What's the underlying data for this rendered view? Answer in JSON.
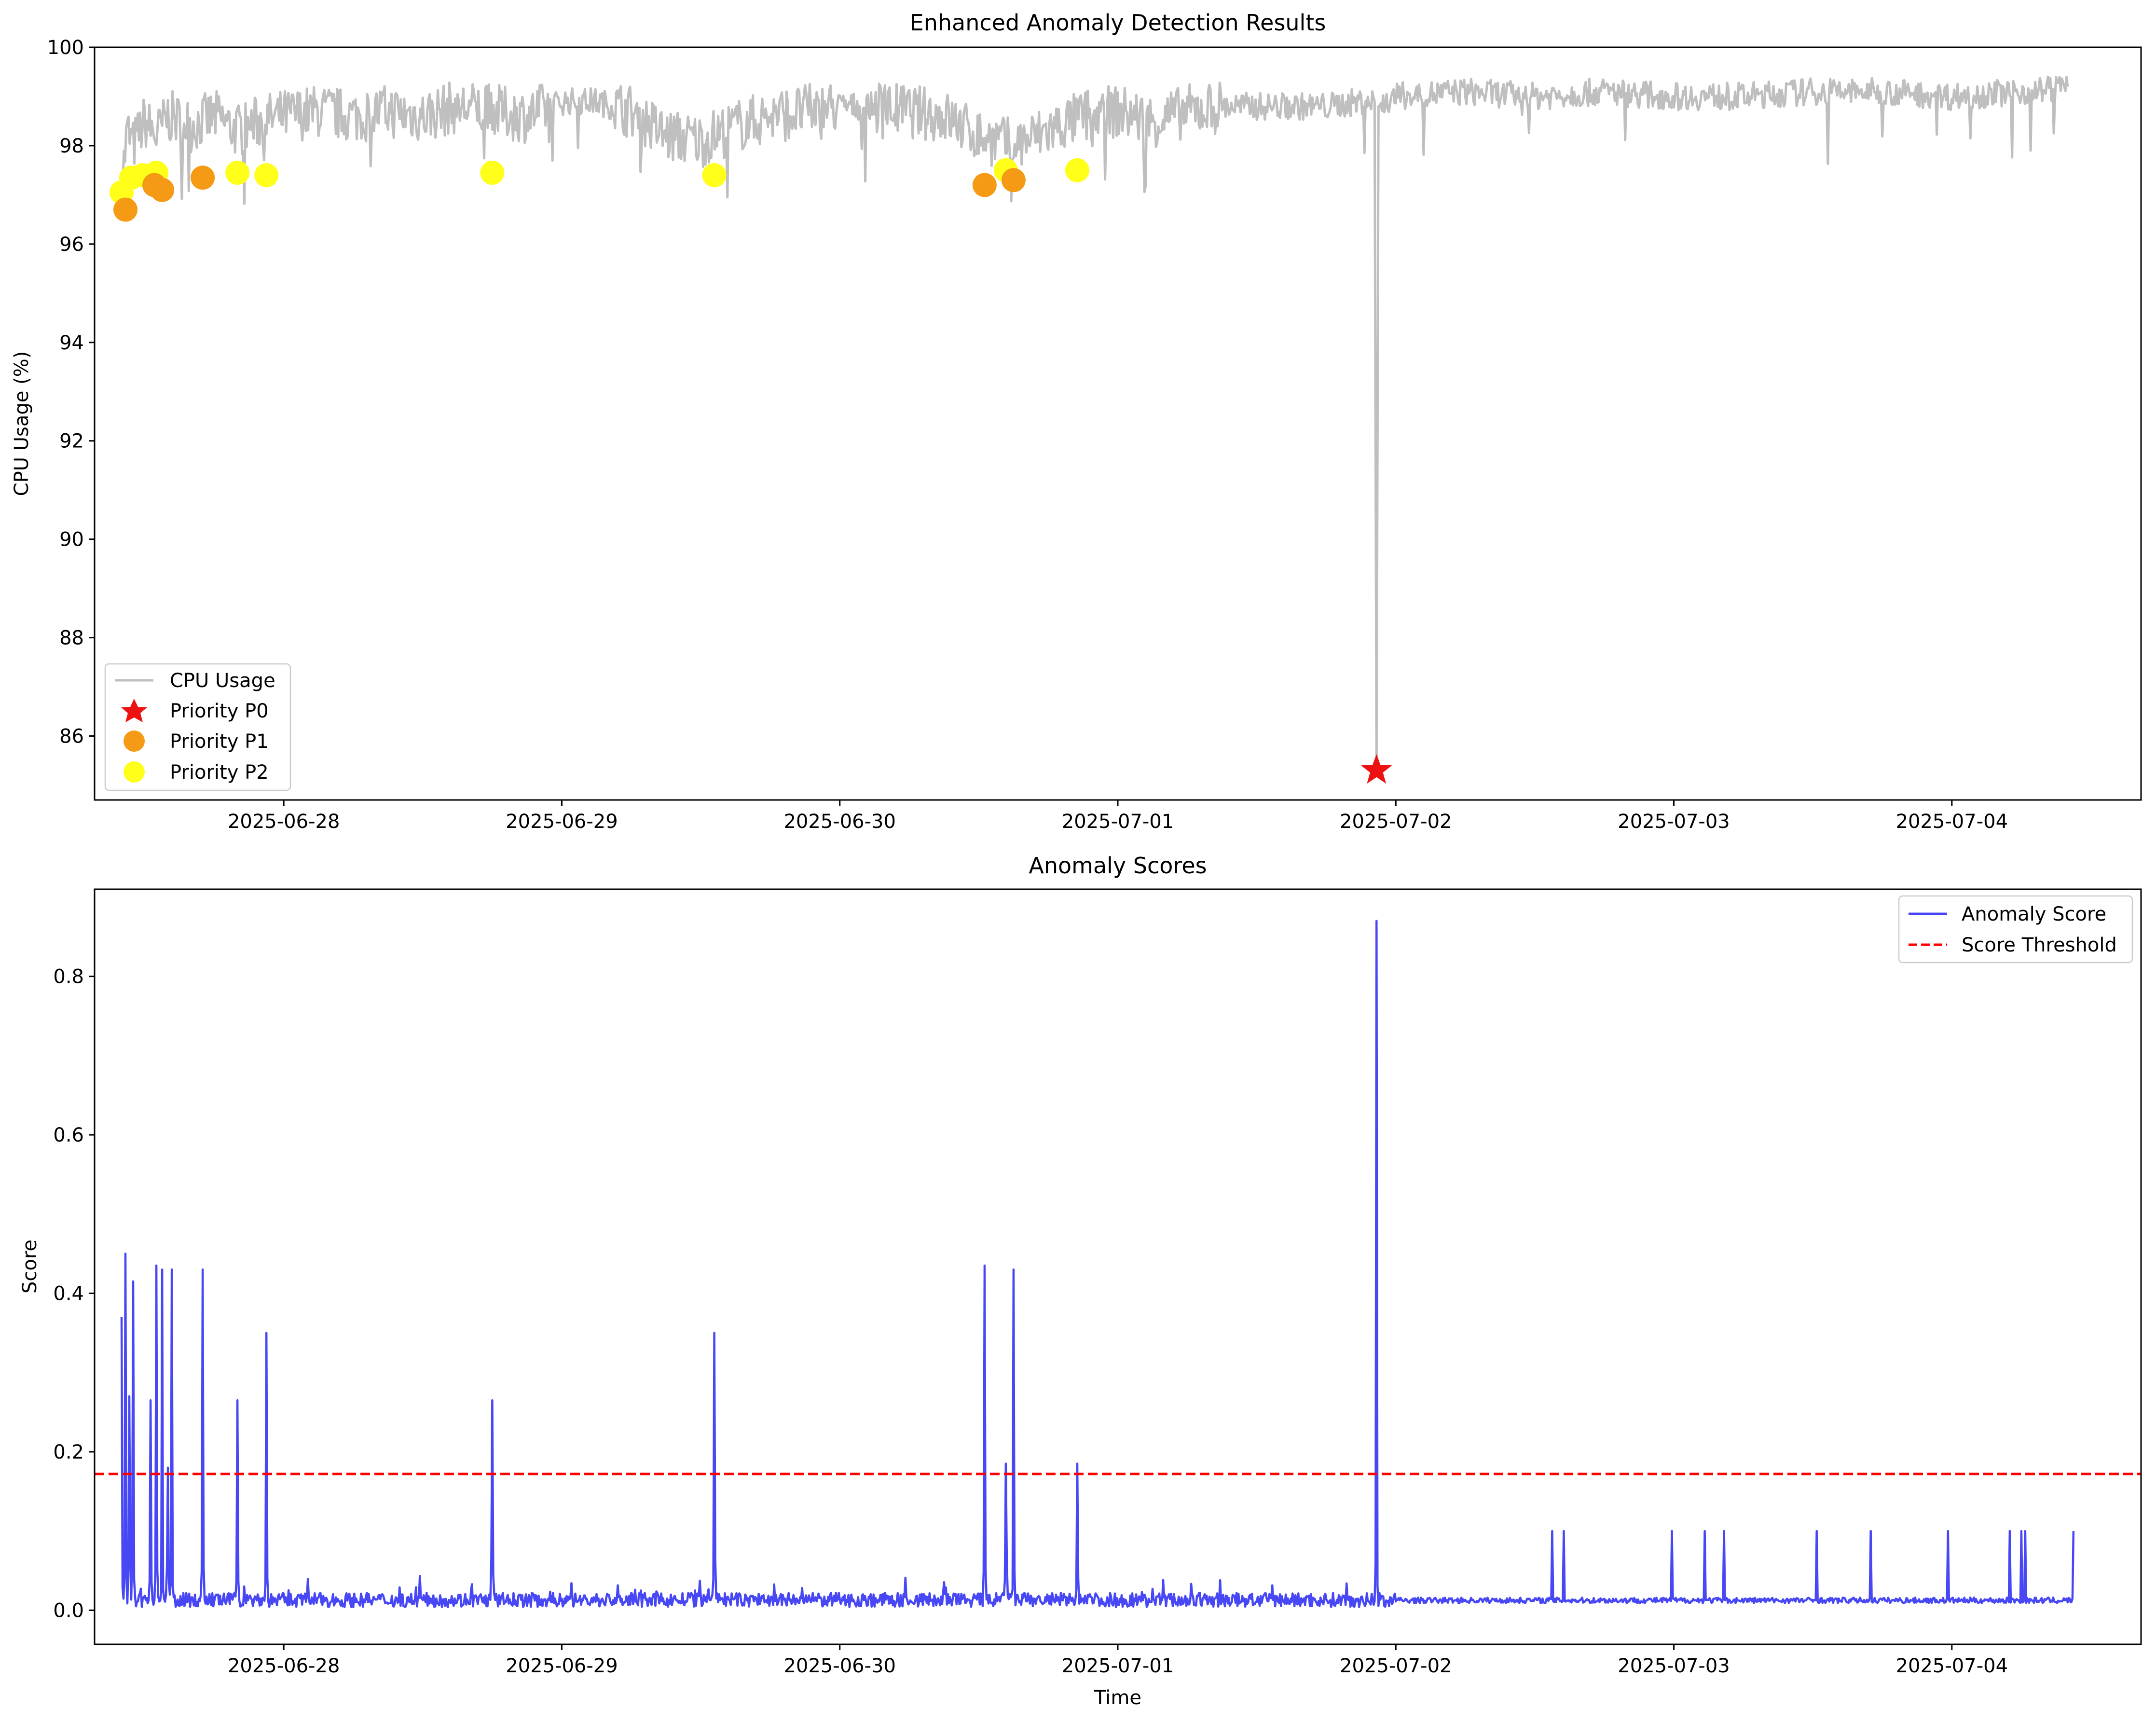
{
  "chart_data": [
    {
      "type": "line",
      "title": "Enhanced Anomaly Detection Results",
      "xlabel": "",
      "ylabel": "CPU Usage (%)",
      "xlim": [
        "2025-06-27T07:40",
        "2025-07-04T16:20"
      ],
      "ylim": [
        84.7,
        100.0
      ],
      "yticks": [
        86,
        88,
        90,
        92,
        94,
        96,
        98,
        100
      ],
      "xticks": [
        "2025-06-28",
        "2025-06-29",
        "2025-06-30",
        "2025-07-01",
        "2025-07-02",
        "2025-07-03",
        "2025-07-04"
      ],
      "grid": false,
      "legend_position": "lower-left",
      "series": [
        {
          "name": "CPU Usage",
          "kind": "line",
          "color": "#bfbfbf",
          "x": [
            "2025-06-27T10:00",
            "2025-06-27T10:30",
            "2025-06-27T11:00",
            "2025-06-27T12:00",
            "2025-06-27T13:00",
            "2025-06-27T14:00",
            "2025-06-27T16:00",
            "2025-06-27T18:00",
            "2025-06-27T20:00",
            "2025-06-27T22:00",
            "2025-06-28T00:00",
            "2025-06-28T03:00",
            "2025-06-28T06:00",
            "2025-06-28T09:00",
            "2025-06-28T12:00",
            "2025-06-28T15:00",
            "2025-06-28T18:00",
            "2025-06-28T21:00",
            "2025-06-29T00:00",
            "2025-06-29T03:00",
            "2025-06-29T06:00",
            "2025-06-29T09:00",
            "2025-06-29T12:00",
            "2025-06-29T15:00",
            "2025-06-29T18:00",
            "2025-06-29T21:00",
            "2025-06-30T00:00",
            "2025-06-30T03:00",
            "2025-06-30T06:00",
            "2025-06-30T09:00",
            "2025-06-30T12:00",
            "2025-06-30T15:00",
            "2025-06-30T18:00",
            "2025-06-30T21:00",
            "2025-07-01T00:00",
            "2025-07-01T03:00",
            "2025-07-01T06:00",
            "2025-07-01T09:00",
            "2025-07-01T12:00",
            "2025-07-01T15:00",
            "2025-07-01T18:00",
            "2025-07-01T21:00",
            "2025-07-01T22:10",
            "2025-07-01T22:20",
            "2025-07-01T22:30",
            "2025-07-02T00:00",
            "2025-07-02T06:00",
            "2025-07-02T12:00",
            "2025-07-02T18:00",
            "2025-07-03T00:00",
            "2025-07-03T06:00",
            "2025-07-03T12:00",
            "2025-07-03T18:00",
            "2025-07-04T00:00",
            "2025-07-04T06:00",
            "2025-07-04T10:00"
          ],
          "y": [
            97.2,
            98.3,
            98.0,
            98.5,
            98.2,
            98.6,
            98.4,
            98.6,
            98.3,
            98.5,
            98.6,
            98.7,
            98.6,
            98.7,
            98.6,
            98.8,
            98.7,
            98.6,
            98.9,
            98.9,
            98.7,
            98.2,
            98.1,
            98.4,
            98.6,
            98.7,
            98.8,
            98.8,
            98.7,
            98.6,
            98.2,
            98.0,
            98.3,
            98.6,
            98.7,
            98.5,
            98.7,
            98.8,
            98.8,
            98.8,
            98.8,
            98.9,
            98.9,
            85.3,
            98.8,
            99.0,
            99.1,
            99.0,
            99.1,
            99.0,
            99.0,
            99.1,
            99.1,
            99.0,
            99.1,
            99.2
          ]
        },
        {
          "name": "Priority P0",
          "kind": "scatter",
          "marker": "star",
          "color": "#ee1111",
          "points": [
            {
              "x": "2025-07-01T22:20",
              "y": 85.3
            }
          ]
        },
        {
          "name": "Priority P1",
          "kind": "scatter",
          "marker": "circle",
          "color": "#f59a14",
          "points": [
            {
              "x": "2025-06-27T10:20",
              "y": 96.7
            },
            {
              "x": "2025-06-27T12:50",
              "y": 97.2
            },
            {
              "x": "2025-06-27T13:30",
              "y": 97.1
            },
            {
              "x": "2025-06-27T17:00",
              "y": 97.35
            },
            {
              "x": "2025-06-30T12:30",
              "y": 97.2
            },
            {
              "x": "2025-06-30T15:00",
              "y": 97.3
            }
          ]
        },
        {
          "name": "Priority P2",
          "kind": "scatter",
          "marker": "circle",
          "color": "#ffff1a",
          "points": [
            {
              "x": "2025-06-27T10:00",
              "y": 97.05
            },
            {
              "x": "2025-06-27T10:50",
              "y": 97.35
            },
            {
              "x": "2025-06-27T11:50",
              "y": 97.4
            },
            {
              "x": "2025-06-27T13:00",
              "y": 97.45
            },
            {
              "x": "2025-06-27T20:00",
              "y": 97.45
            },
            {
              "x": "2025-06-27T22:30",
              "y": 97.4
            },
            {
              "x": "2025-06-28T18:00",
              "y": 97.45
            },
            {
              "x": "2025-06-29T13:10",
              "y": 97.4
            },
            {
              "x": "2025-06-30T14:20",
              "y": 97.5
            },
            {
              "x": "2025-06-30T20:30",
              "y": 97.5
            }
          ]
        }
      ]
    },
    {
      "type": "line",
      "title": "Anomaly Scores",
      "xlabel": "Time",
      "ylabel": "Score",
      "xlim": [
        "2025-06-27T07:40",
        "2025-07-04T16:20"
      ],
      "ylim": [
        -0.043,
        0.91
      ],
      "yticks": [
        0.0,
        0.2,
        0.4,
        0.6,
        0.8
      ],
      "ytick_labels": [
        "0.0",
        "0.2",
        "0.4",
        "0.6",
        "0.8"
      ],
      "xticks": [
        "2025-06-28",
        "2025-06-29",
        "2025-06-30",
        "2025-07-01",
        "2025-07-02",
        "2025-07-03",
        "2025-07-04"
      ],
      "grid": false,
      "legend_position": "upper-right",
      "series": [
        {
          "name": "Anomaly Score",
          "kind": "line",
          "color": "#4747f5",
          "baseline_start": "2025-06-27T11:30",
          "baseline_end": "2025-07-04T10:00",
          "baseline_values": [
            0.008,
            0.006,
            0.012
          ],
          "spikes": [
            {
              "x": "2025-06-27T10:00",
              "y": 0.37
            },
            {
              "x": "2025-06-27T10:20",
              "y": 0.45
            },
            {
              "x": "2025-06-27T10:40",
              "y": 0.27
            },
            {
              "x": "2025-06-27T11:00",
              "y": 0.415
            },
            {
              "x": "2025-06-27T12:30",
              "y": 0.265
            },
            {
              "x": "2025-06-27T13:00",
              "y": 0.435
            },
            {
              "x": "2025-06-27T13:30",
              "y": 0.43
            },
            {
              "x": "2025-06-27T14:00",
              "y": 0.18
            },
            {
              "x": "2025-06-27T14:20",
              "y": 0.43
            },
            {
              "x": "2025-06-27T17:00",
              "y": 0.43
            },
            {
              "x": "2025-06-27T20:00",
              "y": 0.265
            },
            {
              "x": "2025-06-27T22:30",
              "y": 0.35
            },
            {
              "x": "2025-06-28T18:00",
              "y": 0.265
            },
            {
              "x": "2025-06-29T13:10",
              "y": 0.35
            },
            {
              "x": "2025-06-30T12:30",
              "y": 0.435
            },
            {
              "x": "2025-06-30T14:20",
              "y": 0.185
            },
            {
              "x": "2025-06-30T15:00",
              "y": 0.43
            },
            {
              "x": "2025-06-30T20:30",
              "y": 0.185
            },
            {
              "x": "2025-07-01T22:20",
              "y": 0.87
            },
            {
              "x": "2025-07-02T13:30",
              "y": 0.1
            },
            {
              "x": "2025-07-02T14:30",
              "y": 0.1
            },
            {
              "x": "2025-07-02T23:50",
              "y": 0.1
            },
            {
              "x": "2025-07-03T02:40",
              "y": 0.1
            },
            {
              "x": "2025-07-03T04:20",
              "y": 0.1
            },
            {
              "x": "2025-07-03T12:20",
              "y": 0.1
            },
            {
              "x": "2025-07-03T17:00",
              "y": 0.1
            },
            {
              "x": "2025-07-03T23:40",
              "y": 0.1
            },
            {
              "x": "2025-07-04T05:00",
              "y": 0.1
            },
            {
              "x": "2025-07-04T06:00",
              "y": 0.1
            },
            {
              "x": "2025-07-04T06:20",
              "y": 0.1
            },
            {
              "x": "2025-07-04T10:30",
              "y": 0.1
            }
          ]
        },
        {
          "name": "Score Threshold",
          "kind": "hline",
          "style": "dashed",
          "color": "#ff0000",
          "y": 0.172
        }
      ]
    }
  ]
}
